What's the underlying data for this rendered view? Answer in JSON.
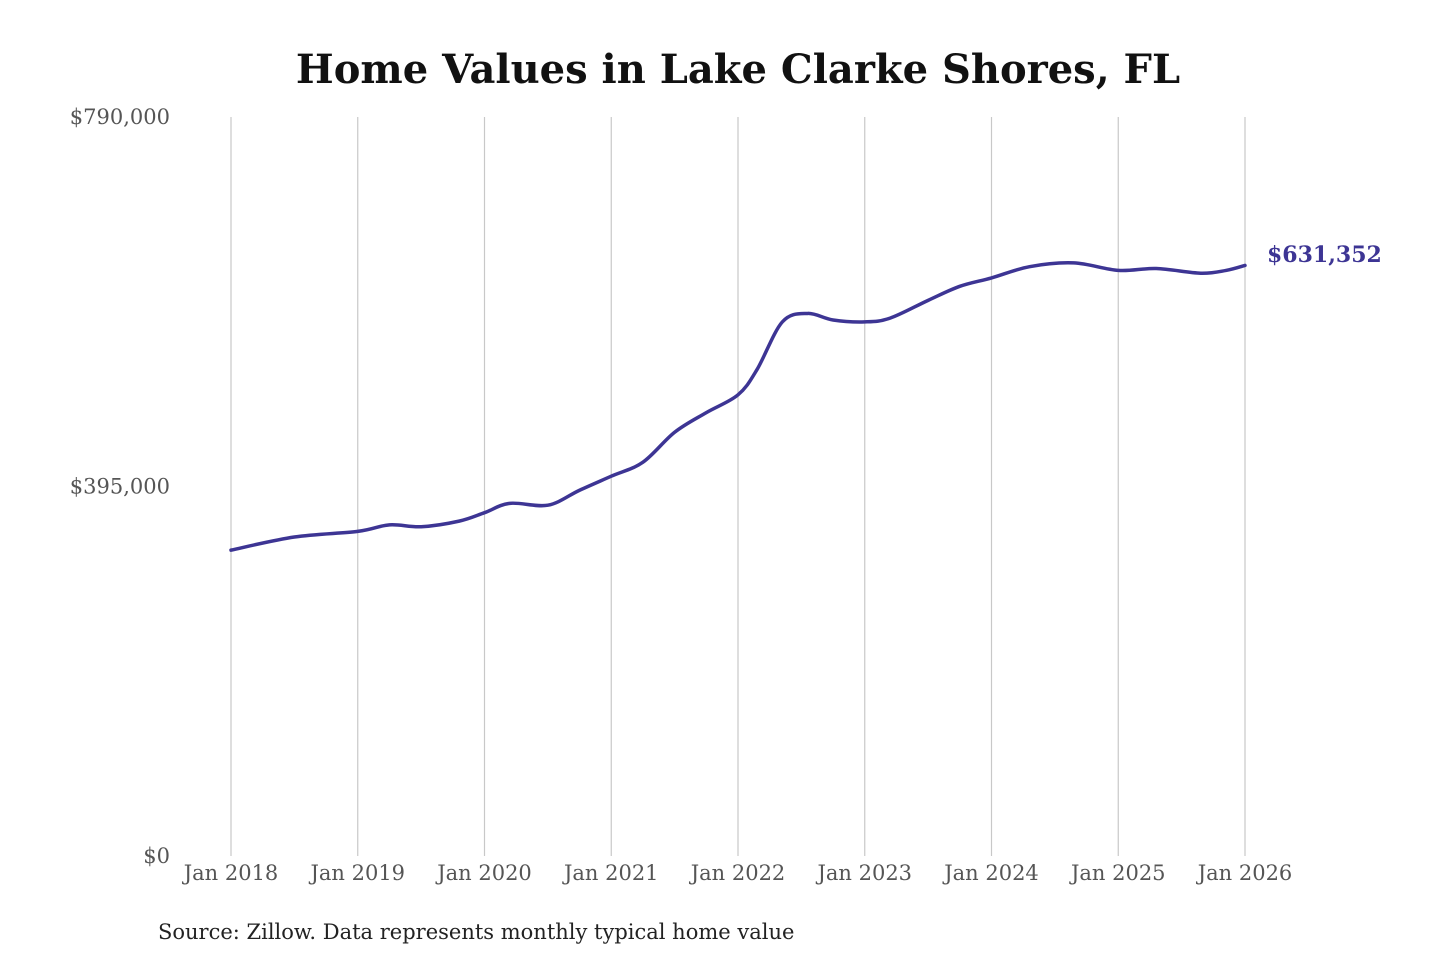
{
  "chart_data": {
    "type": "line",
    "title": "Home Values in Lake Clarke Shores, FL",
    "source": "Source: Zillow. Data represents monthly typical home value",
    "xlabel": "",
    "ylabel": "",
    "ylim": [
      0,
      790000
    ],
    "y_ticks": [
      0,
      395000,
      790000
    ],
    "y_tick_labels": [
      "$0",
      "$395,000",
      "$790,000"
    ],
    "x_range": [
      2018.0,
      2026.0
    ],
    "x_ticks": [
      2018,
      2019,
      2020,
      2021,
      2022,
      2023,
      2024,
      2025,
      2026
    ],
    "x_tick_labels": [
      "Jan 2018",
      "Jan 2019",
      "Jan 2020",
      "Jan 2021",
      "Jan 2022",
      "Jan 2023",
      "Jan 2024",
      "Jan 2025",
      "Jan 2026"
    ],
    "grid": "vertical",
    "line_color": "#3d3594",
    "end_label": "$631,352",
    "series": [
      {
        "x": [
          2018.0,
          2018.5,
          2019.0,
          2019.25,
          2019.5,
          2019.8,
          2020.0,
          2020.2,
          2020.5,
          2020.75,
          2021.0,
          2021.25,
          2021.5,
          2021.75,
          2022.0,
          2022.15,
          2022.35,
          2022.55,
          2022.75,
          2023.0,
          2023.2,
          2023.5,
          2023.75,
          2024.0,
          2024.3,
          2024.65,
          2025.0,
          2025.3,
          2025.65,
          2025.85,
          2026.0
        ],
        "y": [
          327000,
          341000,
          347000,
          354000,
          352000,
          358000,
          367000,
          377000,
          375000,
          391000,
          406000,
          421000,
          453000,
          474000,
          493000,
          520000,
          571000,
          580000,
          573000,
          571000,
          575000,
          594000,
          609000,
          618000,
          630000,
          634000,
          626000,
          628000,
          623000,
          626000,
          631352
        ]
      }
    ]
  }
}
